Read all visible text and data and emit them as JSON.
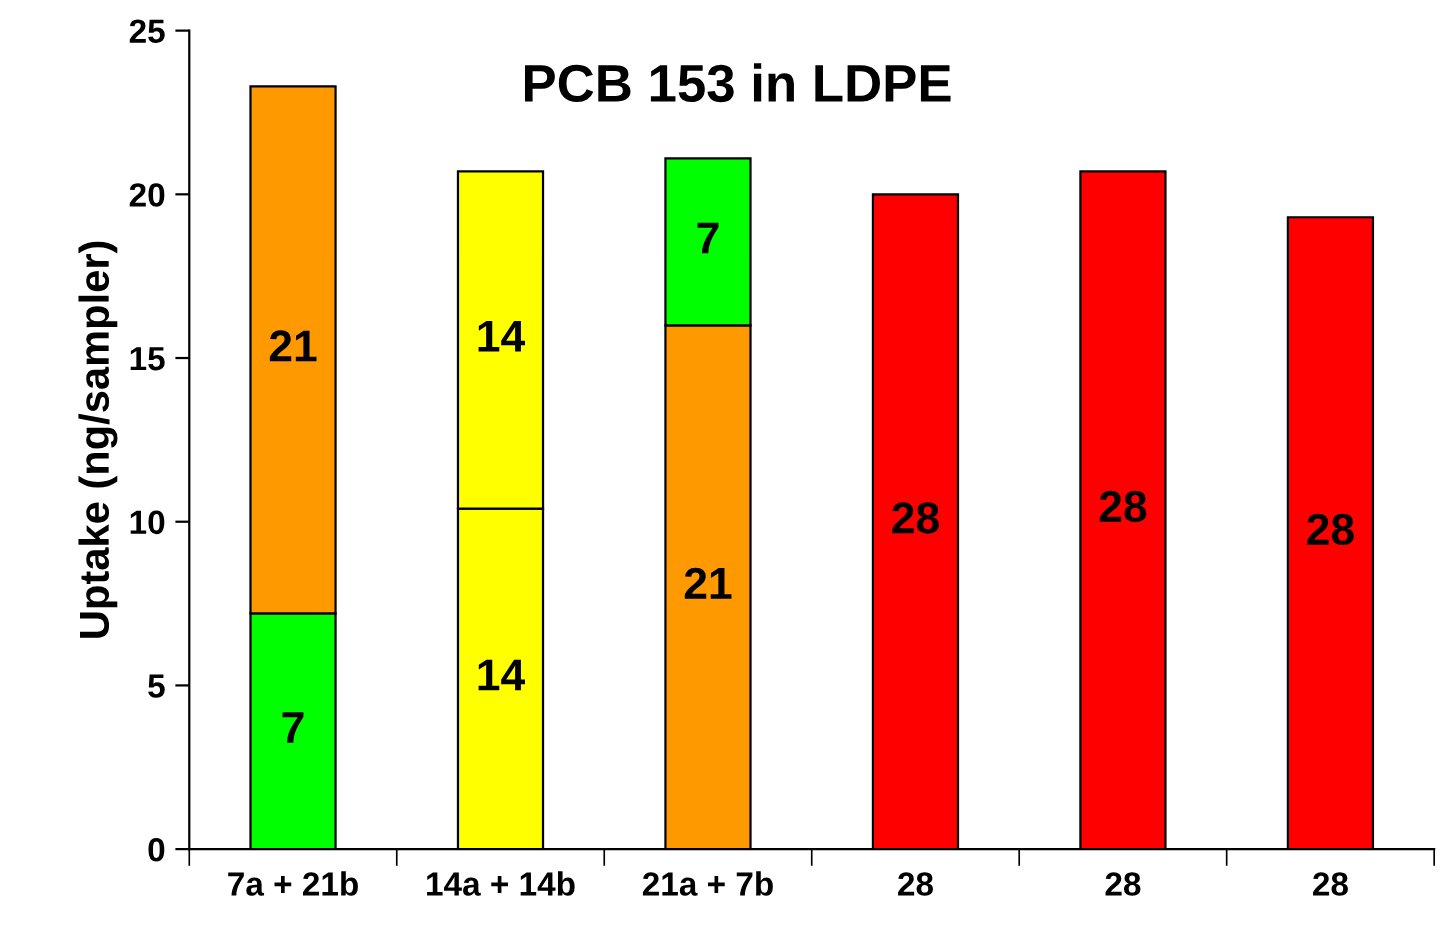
{
  "chart_data": {
    "type": "bar",
    "title": "PCB 153 in LDPE",
    "ylabel": "Uptake (ng/sampler)",
    "stacked": true,
    "categories": [
      "7a + 21b",
      "14a + 14b",
      "21a + 7b",
      "28",
      "28",
      "28"
    ],
    "series": [
      {
        "colors": [
          "#00ff00",
          "#ffff00",
          "#ff9900",
          "#ff0000",
          "#ff0000",
          "#ff0000"
        ],
        "values": [
          7.2,
          10.4,
          16.0,
          20.0,
          20.7,
          19.3
        ]
      },
      {
        "colors": [
          "#ff9900",
          "#ffff00",
          "#00ff00",
          null,
          null,
          null
        ],
        "values": [
          16.1,
          10.3,
          5.1,
          null,
          null,
          null
        ]
      }
    ],
    "annotations": [
      "7",
      "21",
      "14",
      "14",
      "21",
      "7",
      "28",
      "28",
      "28"
    ],
    "ylim": [
      0,
      25
    ],
    "yticks": [
      0,
      5,
      10,
      15,
      20,
      25
    ],
    "grid": false,
    "legend": false
  }
}
